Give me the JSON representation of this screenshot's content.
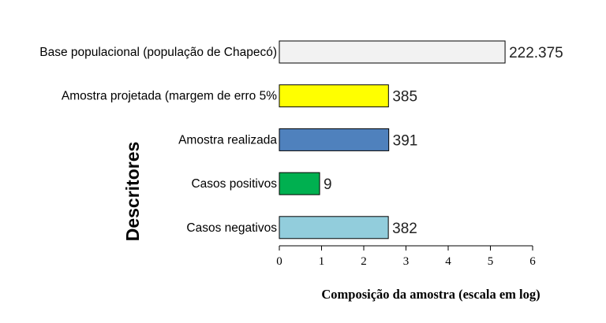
{
  "chart_data": {
    "type": "bar",
    "orientation": "horizontal",
    "xscale": "log10",
    "categories": [
      "Base populacional (população de Chapecó)",
      "Amostra projetada (margem de erro 5%",
      "Amostra realizada",
      "Casos positivos",
      "Casos negativos"
    ],
    "values": [
      222375,
      385,
      391,
      9,
      382
    ],
    "value_labels": [
      "222.375",
      "385",
      "391",
      "9",
      "382"
    ],
    "colors": [
      "#f2f2f2",
      "#ffff00",
      "#4f81bd",
      "#00b050",
      "#92cddc"
    ],
    "bar_stroke": "#000000",
    "xlabel": "Composição da amostra (escala em log)",
    "ylabel": "Descritores",
    "xlim": [
      0,
      6
    ],
    "xticks": [
      "0",
      "1",
      "2",
      "3",
      "4",
      "5",
      "6"
    ],
    "grid": false,
    "legend": "none"
  }
}
